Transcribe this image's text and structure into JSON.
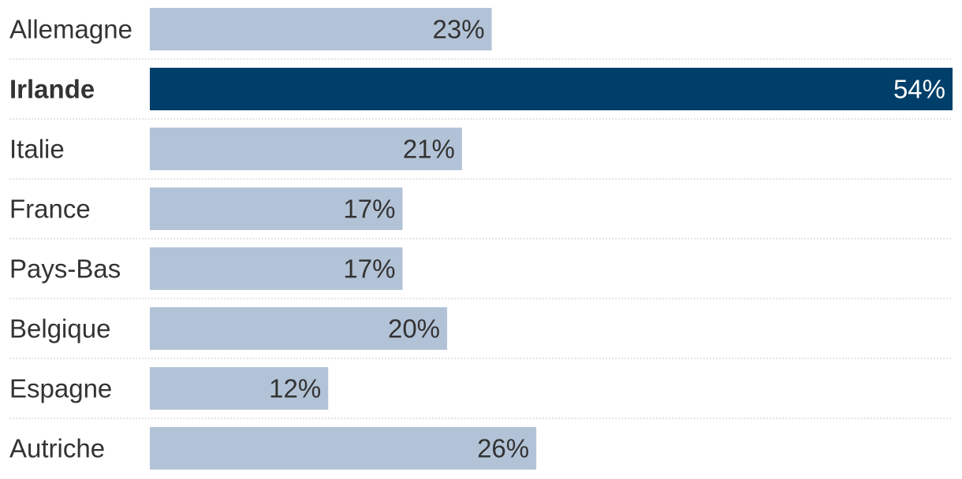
{
  "chart_data": {
    "type": "bar",
    "orientation": "horizontal",
    "categories": [
      "Allemagne",
      "Irlande",
      "Italie",
      "France",
      "Pays-Bas",
      "Belgique",
      "Espagne",
      "Autriche"
    ],
    "values": [
      23,
      54,
      21,
      17,
      17,
      20,
      12,
      26
    ],
    "value_labels": [
      "23%",
      "54%",
      "21%",
      "17%",
      "17%",
      "20%",
      "12%",
      "26%"
    ],
    "highlighted_category": "Irlande",
    "xlim": [
      0,
      54
    ],
    "grid": false,
    "legend": "none",
    "colors": {
      "bar": "#b3c3d7",
      "highlight_bar": "#003f69",
      "text": "#333333",
      "highlight_value_text": "#ffffff",
      "separator": "#c8c8c8"
    }
  }
}
